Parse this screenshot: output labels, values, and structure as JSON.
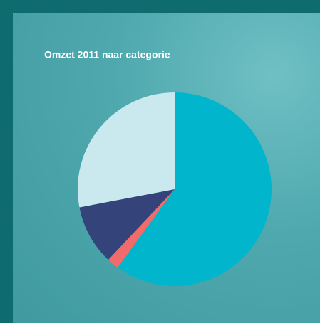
{
  "chart_data": {
    "type": "pie",
    "title": "Omzet 2011 naar categorie",
    "values": [
      60,
      2,
      10,
      28
    ],
    "colors": [
      "#00b5cc",
      "#f26b6b",
      "#34447a",
      "#c9e9ef"
    ]
  }
}
